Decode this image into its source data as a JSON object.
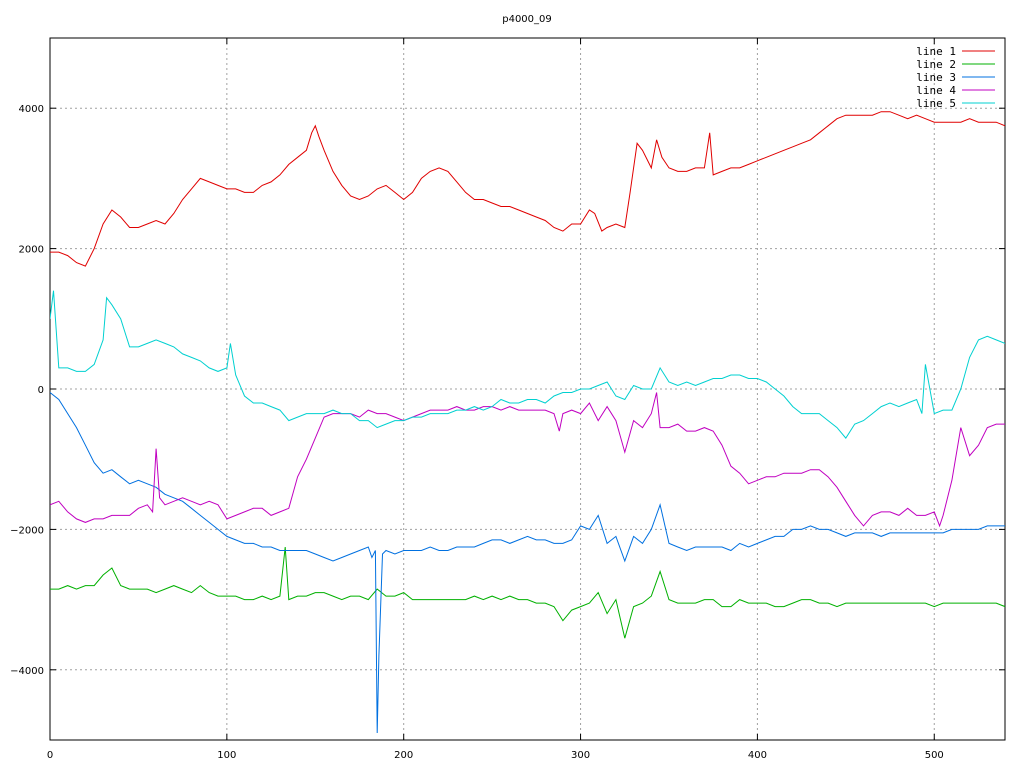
{
  "chart_data": {
    "type": "line",
    "title": "p4000_09",
    "xlabel": "",
    "ylabel": "",
    "xlim": [
      0,
      540
    ],
    "ylim": [
      -5000,
      5000
    ],
    "xticks": [
      0,
      100,
      200,
      300,
      400,
      500
    ],
    "yticks": [
      -4000,
      -2000,
      0,
      2000,
      4000
    ],
    "xtick_labels": [
      "0",
      "100",
      "200",
      "300",
      "400",
      "500"
    ],
    "ytick_labels": [
      "−4000",
      "−2000",
      "0",
      "2000",
      "4000"
    ],
    "grid": true,
    "legend_position": "top-right",
    "series": [
      {
        "name": "line 1",
        "color": "#e00000",
        "x": [
          0,
          5,
          10,
          15,
          20,
          25,
          30,
          35,
          40,
          45,
          50,
          55,
          60,
          65,
          70,
          75,
          80,
          85,
          90,
          95,
          100,
          105,
          110,
          115,
          120,
          125,
          130,
          135,
          140,
          145,
          148,
          150,
          152,
          155,
          160,
          165,
          170,
          175,
          180,
          185,
          190,
          195,
          200,
          205,
          210,
          215,
          220,
          225,
          230,
          235,
          240,
          245,
          250,
          255,
          260,
          265,
          270,
          275,
          280,
          285,
          290,
          295,
          300,
          305,
          308,
          312,
          315,
          320,
          325,
          328,
          332,
          335,
          340,
          343,
          346,
          350,
          355,
          360,
          365,
          370,
          373,
          375,
          380,
          385,
          390,
          395,
          400,
          405,
          410,
          415,
          420,
          425,
          430,
          435,
          440,
          445,
          450,
          455,
          460,
          465,
          470,
          475,
          480,
          485,
          490,
          495,
          500,
          505,
          510,
          515,
          520,
          525,
          530,
          535,
          540
        ],
        "y": [
          1950,
          1950,
          1900,
          1800,
          1750,
          2000,
          2350,
          2550,
          2450,
          2300,
          2300,
          2350,
          2400,
          2350,
          2500,
          2700,
          2850,
          3000,
          2950,
          2900,
          2850,
          2850,
          2800,
          2800,
          2900,
          2950,
          3050,
          3200,
          3300,
          3400,
          3650,
          3750,
          3600,
          3400,
          3100,
          2900,
          2750,
          2700,
          2750,
          2850,
          2900,
          2800,
          2700,
          2800,
          3000,
          3100,
          3150,
          3100,
          2950,
          2800,
          2700,
          2700,
          2650,
          2600,
          2600,
          2550,
          2500,
          2450,
          2400,
          2300,
          2250,
          2350,
          2350,
          2550,
          2500,
          2250,
          2300,
          2350,
          2300,
          2800,
          3500,
          3400,
          3150,
          3550,
          3300,
          3150,
          3100,
          3100,
          3150,
          3150,
          3650,
          3050,
          3100,
          3150,
          3150,
          3200,
          3250,
          3300,
          3350,
          3400,
          3450,
          3500,
          3550,
          3650,
          3750,
          3850,
          3900,
          3900,
          3900,
          3900,
          3950,
          3950,
          3900,
          3850,
          3900,
          3850,
          3800,
          3800,
          3800,
          3800,
          3850,
          3800,
          3800,
          3800,
          3750
        ]
      },
      {
        "name": "line 2",
        "color": "#00b000",
        "x": [
          0,
          5,
          10,
          15,
          20,
          25,
          30,
          35,
          40,
          45,
          50,
          55,
          60,
          65,
          70,
          75,
          80,
          85,
          90,
          95,
          100,
          105,
          110,
          115,
          120,
          125,
          130,
          133,
          135,
          140,
          145,
          150,
          155,
          160,
          165,
          170,
          175,
          180,
          185,
          190,
          195,
          200,
          205,
          210,
          215,
          220,
          225,
          230,
          235,
          240,
          245,
          250,
          255,
          260,
          265,
          270,
          275,
          280,
          285,
          290,
          295,
          300,
          305,
          310,
          315,
          320,
          325,
          330,
          335,
          340,
          345,
          350,
          355,
          360,
          365,
          370,
          375,
          380,
          385,
          390,
          395,
          400,
          405,
          410,
          415,
          420,
          425,
          430,
          435,
          440,
          445,
          450,
          455,
          460,
          465,
          470,
          475,
          480,
          485,
          490,
          495,
          500,
          505,
          510,
          515,
          520,
          525,
          530,
          535,
          540
        ],
        "y": [
          -2850,
          -2850,
          -2800,
          -2850,
          -2800,
          -2800,
          -2650,
          -2550,
          -2800,
          -2850,
          -2850,
          -2850,
          -2900,
          -2850,
          -2800,
          -2850,
          -2900,
          -2800,
          -2900,
          -2950,
          -2950,
          -2950,
          -3000,
          -3000,
          -2950,
          -3000,
          -2950,
          -2250,
          -3000,
          -2950,
          -2950,
          -2900,
          -2900,
          -2950,
          -3000,
          -2950,
          -2950,
          -3000,
          -2850,
          -2950,
          -2950,
          -2900,
          -3000,
          -3000,
          -3000,
          -3000,
          -3000,
          -3000,
          -3000,
          -2950,
          -3000,
          -2950,
          -3000,
          -2950,
          -3000,
          -3000,
          -3050,
          -3050,
          -3100,
          -3300,
          -3150,
          -3100,
          -3050,
          -2900,
          -3200,
          -3000,
          -3550,
          -3100,
          -3050,
          -2950,
          -2600,
          -3000,
          -3050,
          -3050,
          -3050,
          -3000,
          -3000,
          -3100,
          -3100,
          -3000,
          -3050,
          -3050,
          -3050,
          -3100,
          -3100,
          -3050,
          -3000,
          -3000,
          -3050,
          -3050,
          -3100,
          -3050,
          -3050,
          -3050,
          -3050,
          -3050,
          -3050,
          -3050,
          -3050,
          -3050,
          -3050,
          -3100,
          -3050,
          -3050,
          -3050,
          -3050,
          -3050,
          -3050,
          -3050,
          -3100
        ]
      },
      {
        "name": "line 3",
        "color": "#0070e0",
        "x": [
          0,
          5,
          10,
          15,
          20,
          25,
          30,
          35,
          40,
          45,
          50,
          55,
          60,
          65,
          70,
          75,
          80,
          85,
          90,
          95,
          100,
          105,
          110,
          115,
          120,
          125,
          130,
          135,
          140,
          145,
          150,
          155,
          160,
          165,
          170,
          175,
          180,
          182,
          184,
          185,
          186,
          188,
          190,
          195,
          200,
          205,
          210,
          215,
          220,
          225,
          230,
          235,
          240,
          245,
          250,
          255,
          260,
          265,
          270,
          275,
          280,
          285,
          290,
          295,
          300,
          305,
          310,
          315,
          320,
          325,
          330,
          335,
          340,
          345,
          350,
          355,
          360,
          365,
          370,
          375,
          380,
          385,
          390,
          395,
          400,
          405,
          410,
          415,
          420,
          425,
          430,
          435,
          440,
          445,
          450,
          455,
          460,
          465,
          470,
          475,
          480,
          485,
          490,
          495,
          500,
          505,
          510,
          515,
          520,
          525,
          530,
          535,
          540
        ],
        "y": [
          -50,
          -150,
          -350,
          -550,
          -800,
          -1050,
          -1200,
          -1150,
          -1250,
          -1350,
          -1300,
          -1350,
          -1400,
          -1500,
          -1550,
          -1600,
          -1700,
          -1800,
          -1900,
          -2000,
          -2100,
          -2150,
          -2200,
          -2200,
          -2250,
          -2250,
          -2300,
          -2300,
          -2300,
          -2300,
          -2350,
          -2400,
          -2450,
          -2400,
          -2350,
          -2300,
          -2250,
          -2400,
          -2300,
          -4900,
          -3800,
          -2350,
          -2300,
          -2350,
          -2300,
          -2300,
          -2300,
          -2250,
          -2300,
          -2300,
          -2250,
          -2250,
          -2250,
          -2200,
          -2150,
          -2150,
          -2200,
          -2150,
          -2100,
          -2150,
          -2150,
          -2200,
          -2200,
          -2150,
          -1950,
          -2000,
          -1800,
          -2200,
          -2100,
          -2450,
          -2100,
          -2200,
          -2000,
          -1650,
          -2200,
          -2250,
          -2300,
          -2250,
          -2250,
          -2250,
          -2250,
          -2300,
          -2200,
          -2250,
          -2200,
          -2150,
          -2100,
          -2100,
          -2000,
          -2000,
          -1950,
          -2000,
          -2000,
          -2050,
          -2100,
          -2050,
          -2050,
          -2050,
          -2100,
          -2050,
          -2050,
          -2050,
          -2050,
          -2050,
          -2050,
          -2050,
          -2000,
          -2000,
          -2000,
          -2000,
          -1950,
          -1950,
          -1950
        ]
      },
      {
        "name": "line 4",
        "color": "#c000c0",
        "x": [
          0,
          5,
          10,
          15,
          20,
          25,
          30,
          35,
          40,
          45,
          50,
          55,
          58,
          60,
          62,
          65,
          70,
          75,
          80,
          85,
          90,
          95,
          100,
          105,
          110,
          115,
          120,
          125,
          130,
          135,
          140,
          145,
          150,
          155,
          160,
          165,
          170,
          175,
          180,
          185,
          190,
          195,
          200,
          205,
          210,
          215,
          220,
          225,
          230,
          235,
          240,
          245,
          250,
          255,
          260,
          265,
          270,
          275,
          280,
          285,
          288,
          290,
          295,
          300,
          305,
          310,
          315,
          320,
          325,
          330,
          335,
          340,
          343,
          345,
          350,
          355,
          360,
          365,
          370,
          375,
          380,
          385,
          390,
          395,
          400,
          405,
          410,
          415,
          420,
          425,
          430,
          435,
          440,
          445,
          450,
          455,
          460,
          465,
          470,
          475,
          480,
          485,
          490,
          495,
          500,
          503,
          505,
          510,
          515,
          520,
          525,
          530,
          535,
          540
        ],
        "y": [
          -1650,
          -1600,
          -1750,
          -1850,
          -1900,
          -1850,
          -1850,
          -1800,
          -1800,
          -1800,
          -1700,
          -1650,
          -1750,
          -850,
          -1550,
          -1650,
          -1600,
          -1550,
          -1600,
          -1650,
          -1600,
          -1650,
          -1850,
          -1800,
          -1750,
          -1700,
          -1700,
          -1800,
          -1750,
          -1700,
          -1250,
          -1000,
          -700,
          -400,
          -350,
          -350,
          -350,
          -400,
          -300,
          -350,
          -350,
          -400,
          -450,
          -400,
          -350,
          -300,
          -300,
          -300,
          -250,
          -300,
          -300,
          -250,
          -250,
          -300,
          -250,
          -300,
          -300,
          -300,
          -300,
          -350,
          -600,
          -350,
          -300,
          -350,
          -200,
          -450,
          -250,
          -450,
          -900,
          -450,
          -550,
          -350,
          -50,
          -550,
          -550,
          -500,
          -600,
          -600,
          -550,
          -600,
          -800,
          -1100,
          -1200,
          -1350,
          -1300,
          -1250,
          -1250,
          -1200,
          -1200,
          -1200,
          -1150,
          -1150,
          -1250,
          -1400,
          -1600,
          -1800,
          -1950,
          -1800,
          -1750,
          -1750,
          -1800,
          -1700,
          -1800,
          -1800,
          -1750,
          -1950,
          -1800,
          -1300,
          -550,
          -950,
          -800,
          -550,
          -500,
          -500
        ]
      },
      {
        "name": "line 5",
        "color": "#00d0d0",
        "x": [
          0,
          2,
          5,
          10,
          15,
          20,
          25,
          30,
          32,
          35,
          40,
          45,
          50,
          55,
          60,
          65,
          70,
          75,
          80,
          85,
          90,
          95,
          100,
          102,
          105,
          110,
          115,
          120,
          125,
          130,
          135,
          140,
          145,
          150,
          155,
          160,
          165,
          170,
          175,
          180,
          185,
          190,
          195,
          200,
          205,
          210,
          215,
          220,
          225,
          230,
          235,
          240,
          245,
          250,
          255,
          260,
          265,
          270,
          275,
          280,
          285,
          290,
          295,
          300,
          305,
          310,
          315,
          320,
          325,
          330,
          335,
          340,
          345,
          350,
          355,
          360,
          365,
          370,
          375,
          380,
          385,
          390,
          395,
          400,
          405,
          410,
          415,
          420,
          425,
          430,
          435,
          440,
          445,
          450,
          455,
          460,
          465,
          470,
          475,
          480,
          485,
          490,
          493,
          495,
          500,
          505,
          510,
          515,
          520,
          525,
          530,
          535,
          540
        ],
        "y": [
          1000,
          1400,
          300,
          300,
          250,
          250,
          350,
          700,
          1300,
          1200,
          1000,
          600,
          600,
          650,
          700,
          650,
          600,
          500,
          450,
          400,
          300,
          250,
          300,
          650,
          200,
          -100,
          -200,
          -200,
          -250,
          -300,
          -450,
          -400,
          -350,
          -350,
          -350,
          -300,
          -350,
          -350,
          -450,
          -450,
          -550,
          -500,
          -450,
          -450,
          -400,
          -400,
          -350,
          -350,
          -350,
          -300,
          -300,
          -250,
          -300,
          -250,
          -150,
          -200,
          -200,
          -150,
          -150,
          -200,
          -100,
          -50,
          -50,
          0,
          0,
          50,
          100,
          -100,
          -150,
          50,
          0,
          0,
          300,
          100,
          50,
          100,
          50,
          100,
          150,
          150,
          200,
          200,
          150,
          150,
          100,
          0,
          -100,
          -250,
          -350,
          -350,
          -350,
          -450,
          -550,
          -700,
          -500,
          -450,
          -350,
          -250,
          -200,
          -250,
          -200,
          -150,
          -350,
          350,
          -350,
          -300,
          -300,
          0,
          450,
          700,
          750,
          700,
          650
        ]
      }
    ]
  }
}
